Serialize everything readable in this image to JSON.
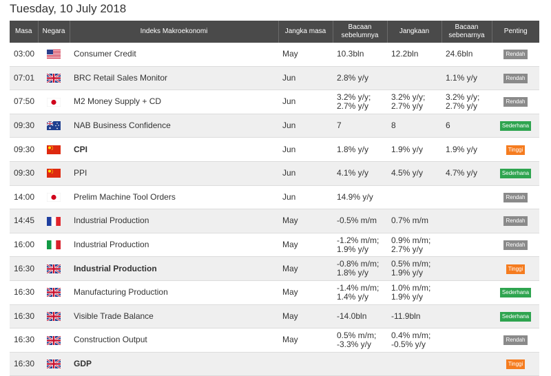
{
  "title": "Tuesday, 10 July 2018",
  "headers": {
    "masa": "Masa",
    "negara": "Negara",
    "indeks": "Indeks Makroekonomi",
    "jangka": "Jangka masa",
    "sebelum": "Bacaan sebelumnya",
    "jangkaan": "Jangkaan",
    "sebenar": "Bacaan sebenarnya",
    "penting": "Penting"
  },
  "colors": {
    "low": "#8a8a8a",
    "moderate": "#2ea44f",
    "high": "#f57c1f",
    "actual_better": "#2e9e2e",
    "actual_worse": "#e52222"
  },
  "rows": [
    {
      "time": "03:00",
      "country": "us-flag-icon",
      "indicator": "Consumer Credit",
      "bold": false,
      "period": "May",
      "previous": "10.3bln",
      "forecast": "12.2bln",
      "actual": "24.6bln",
      "actual_color": "green",
      "importance": "Rendah",
      "level": "low"
    },
    {
      "time": "07:01",
      "country": "uk-flag-icon",
      "indicator": "BRC Retail Sales Monitor",
      "bold": false,
      "period": "Jun",
      "previous": "2.8% y/y",
      "forecast": "",
      "actual": "1.1% y/y",
      "actual_color": "",
      "importance": "Rendah",
      "level": "low"
    },
    {
      "time": "07:50",
      "country": "jp-flag-icon",
      "indicator": "M2 Money Supply + CD",
      "bold": false,
      "period": "Jun",
      "previous": "3.2% y/y;\n2.7% y/y",
      "forecast": "3.2% y/y;\n2.7% y/y",
      "actual": "3.2% y/y;\n2.7% y/y",
      "actual_color": "",
      "importance": "Rendah",
      "level": "low"
    },
    {
      "time": "09:30",
      "country": "au-flag-icon",
      "indicator": "NAB Business Confidence",
      "bold": false,
      "period": "Jun",
      "previous": "7",
      "forecast": "8",
      "actual": "6",
      "actual_color": "red",
      "importance": "Sederhana",
      "level": "moderate"
    },
    {
      "time": "09:30",
      "country": "cn-flag-icon",
      "indicator": "CPI",
      "bold": true,
      "period": "Jun",
      "previous": "1.8% y/y",
      "forecast": "1.9% y/y",
      "actual": "1.9% y/y",
      "actual_color": "",
      "importance": "Tinggi",
      "level": "high"
    },
    {
      "time": "09:30",
      "country": "cn-flag-icon",
      "indicator": "PPI",
      "bold": false,
      "period": "Jun",
      "previous": "4.1% y/y",
      "forecast": "4.5% y/y",
      "actual": "4.7% y/y",
      "actual_color": "green",
      "importance": "Sederhana",
      "level": "moderate"
    },
    {
      "time": "14:00",
      "country": "jp-flag-icon",
      "indicator": "Prelim Machine Tool Orders",
      "bold": false,
      "period": "Jun",
      "previous": "14.9% y/y",
      "forecast": "",
      "actual": "",
      "actual_color": "",
      "importance": "Rendah",
      "level": "low"
    },
    {
      "time": "14:45",
      "country": "fr-flag-icon",
      "indicator": "Industrial Production",
      "bold": false,
      "period": "May",
      "previous": "-0.5% m/m",
      "forecast": "0.7% m/m",
      "actual": "",
      "actual_color": "",
      "importance": "Rendah",
      "level": "low"
    },
    {
      "time": "16:00",
      "country": "it-flag-icon",
      "indicator": "Industrial Production",
      "bold": false,
      "period": "May",
      "previous": "-1.2% m/m;\n1.9% y/y",
      "forecast": "0.9% m/m;\n2.7% y/y",
      "actual": "",
      "actual_color": "",
      "importance": "Rendah",
      "level": "low"
    },
    {
      "time": "16:30",
      "country": "uk-flag-icon",
      "indicator": "Industrial Production",
      "bold": true,
      "period": "May",
      "previous": "-0.8% m/m;\n1.8% y/y",
      "forecast": "0.5% m/m;\n1.9% y/y",
      "actual": "",
      "actual_color": "",
      "importance": "Tinggi",
      "level": "high"
    },
    {
      "time": "16:30",
      "country": "uk-flag-icon",
      "indicator": "Manufacturing Production",
      "bold": false,
      "period": "May",
      "previous": "-1.4% m/m;\n1.4% y/y",
      "forecast": "1.0% m/m;\n1.9% y/y",
      "actual": "",
      "actual_color": "",
      "importance": "Sederhana",
      "level": "moderate"
    },
    {
      "time": "16:30",
      "country": "uk-flag-icon",
      "indicator": "Visible Trade Balance",
      "bold": false,
      "period": "May",
      "previous": "-14.0bln",
      "forecast": "-11.9bln",
      "actual": "",
      "actual_color": "",
      "importance": "Sederhana",
      "level": "moderate"
    },
    {
      "time": "16:30",
      "country": "uk-flag-icon",
      "indicator": "Construction Output",
      "bold": false,
      "period": "May",
      "previous": "0.5% m/m;\n-3.3% y/y",
      "forecast": "0.4% m/m;\n-0.5% y/y",
      "actual": "",
      "actual_color": "",
      "importance": "Rendah",
      "level": "low"
    },
    {
      "time": "16:30",
      "country": "uk-flag-icon",
      "indicator": "GDP",
      "bold": true,
      "period": "",
      "previous": "",
      "forecast": "",
      "actual": "",
      "actual_color": "",
      "importance": "Tinggi",
      "level": "high"
    }
  ]
}
